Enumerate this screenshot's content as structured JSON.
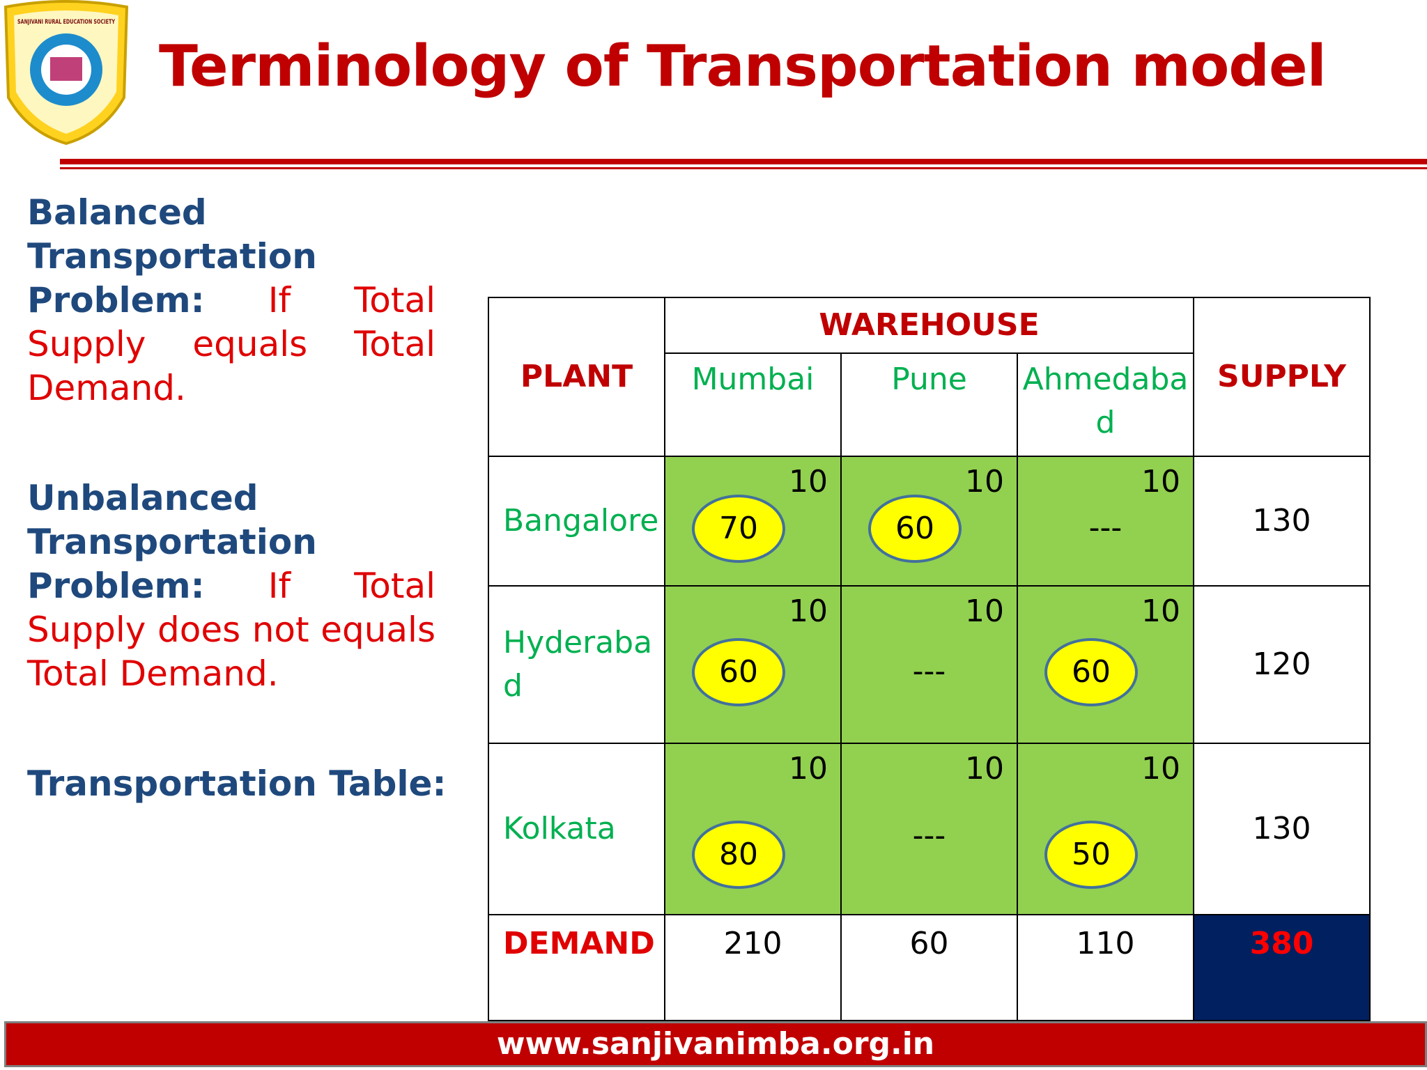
{
  "header": {
    "logo_text": "SANJIVANI RURAL EDUCATION SOCIETY",
    "title": "Terminology of Transportation model"
  },
  "definitions": [
    {
      "term": "Balanced Transportation Problem:",
      "text": "If Total Supply equals Total Demand."
    },
    {
      "term": "Unbalanced Transportation Problem:",
      "text": "If Total Supply does not equals Total Demand."
    }
  ],
  "table_caption": "Transportation Table:",
  "table": {
    "plant_header": "PLANT",
    "group_header": "WAREHOUSE",
    "supply_header": "SUPPLY",
    "columns": [
      "Mumbai",
      "Pune",
      "Ahmedabad"
    ],
    "rows": [
      {
        "plant": "Bangalore",
        "cells": [
          {
            "cost": 10,
            "allocation": 70
          },
          {
            "cost": 10,
            "allocation": 60
          },
          {
            "cost": 10,
            "allocation": "---"
          }
        ],
        "supply": 130
      },
      {
        "plant": "Hyderabad",
        "cells": [
          {
            "cost": 10,
            "allocation": 60
          },
          {
            "cost": 10,
            "allocation": "---"
          },
          {
            "cost": 10,
            "allocation": 60
          }
        ],
        "supply": 120
      },
      {
        "plant": "Kolkata",
        "cells": [
          {
            "cost": 10,
            "allocation": 80
          },
          {
            "cost": 10,
            "allocation": "---"
          },
          {
            "cost": 10,
            "allocation": 50
          }
        ],
        "supply": 130
      }
    ],
    "demand_label": "DEMAND",
    "demand": [
      210,
      60,
      110
    ],
    "total": 380
  },
  "footer": {
    "url": "www.sanjivanimba.org.in"
  }
}
